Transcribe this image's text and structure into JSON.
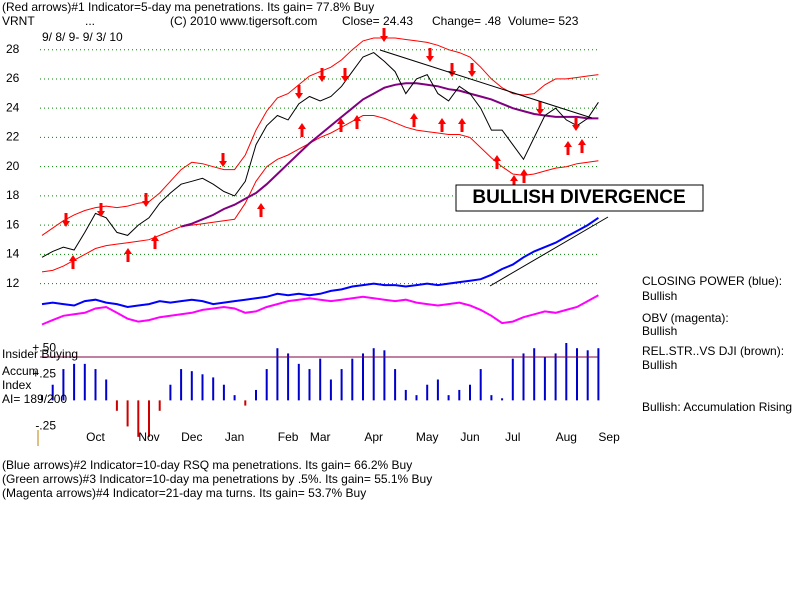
{
  "header": {
    "line1": "(Red arrows)#1 Indicator=5-day ma penetrations. Its gain= 77.8% Buy",
    "ticker": "VRNT",
    "dots": "...",
    "copyright": "(C) 2010 www.tigersoft.com",
    "close": "Close=  24.43",
    "change": "Change= .48",
    "volume": "Volume= 523",
    "dates": "9/ 8/ 9- 9/ 3/ 10"
  },
  "annotation": "BULLISH DIVERGENCE",
  "left_labels": [
    "Insider Buying",
    "Accum",
    "Index",
    "AI= 189/200"
  ],
  "right_labels": [
    "CLOSING POWER (blue):",
    "Bullish",
    "OBV (magenta):",
    "Bullish",
    "REL.STR..VS DJI (brown):",
    "Bullish",
    "Bullish: Accumulation Rising"
  ],
  "footer": [
    "(Blue arrows)#2 Indicator=10-day RSQ ma penetrations. Its gain= 66.2% Buy",
    "(Green arrows)#3 Indicator=10-day ma penetrations by .5%. Its gain= 55.1% Buy",
    "(Magenta arrows)#4 Indicator=21-day ma turns. Its gain= 53.7% Buy"
  ],
  "chart_data": [
    {
      "type": "line",
      "categories": [
        null,
        null,
        null,
        null,
        null,
        "Oct",
        null,
        null,
        null,
        null,
        "Nov",
        null,
        null,
        null,
        "Dec",
        null,
        null,
        null,
        "Jan",
        null,
        null,
        null,
        null,
        "Feb",
        null,
        null,
        "Mar",
        null,
        null,
        null,
        null,
        "Apr",
        null,
        null,
        null,
        null,
        "May",
        null,
        null,
        null,
        "Jun",
        null,
        null,
        null,
        "Jul",
        null,
        null,
        null,
        null,
        "Aug",
        null,
        null,
        null,
        "Sep"
      ],
      "ylim": [
        7.8,
        31.4
      ],
      "yticks": [
        12,
        14,
        16,
        18,
        20,
        22,
        24,
        26,
        28
      ],
      "grid": true,
      "series": [
        {
          "color": "#ff0000",
          "values": [
            15.3,
            15.8,
            16.3,
            16.7,
            17.0,
            17.2,
            17.3,
            17.2,
            17.3,
            17.5,
            17.6,
            18.2,
            19.0,
            19.8,
            20.3,
            20.2,
            20.0,
            19.8,
            19.8,
            20.8,
            22.5,
            23.8,
            24.7,
            25.0,
            25.6,
            26.2,
            26.5,
            26.8,
            27.3,
            28.0,
            28.6,
            28.8,
            28.8,
            28.8,
            28.7,
            28.6,
            28.5,
            28.3,
            28.0,
            27.8,
            27.5,
            26.8,
            26.0,
            25.4,
            25.0,
            24.9,
            25.0,
            25.6,
            26.0,
            26.0,
            26.1,
            26.2,
            26.3,
            null
          ]
        },
        {
          "color": "#ff0000",
          "values": [
            12.8,
            12.9,
            13.2,
            13.6,
            14.0,
            14.4,
            14.6,
            14.7,
            14.8,
            14.9,
            15.0,
            15.3,
            15.6,
            15.9,
            16.0,
            16.1,
            16.2,
            16.3,
            16.4,
            17.5,
            19.0,
            20.0,
            20.5,
            20.8,
            21.2,
            21.6,
            22.0,
            22.3,
            22.7,
            23.1,
            23.5,
            23.5,
            23.3,
            23.0,
            22.7,
            22.5,
            22.4,
            22.3,
            22.2,
            22.2,
            22.0,
            21.3,
            20.6,
            20.0,
            19.5,
            19.4,
            19.5,
            19.7,
            19.9,
            20.0,
            20.2,
            20.3,
            20.4,
            null
          ]
        },
        {
          "color": "#800080",
          "values": [
            null,
            null,
            null,
            null,
            null,
            null,
            null,
            null,
            null,
            null,
            null,
            null,
            null,
            15.9,
            16.1,
            16.4,
            16.7,
            17.1,
            17.4,
            17.8,
            18.2,
            18.8,
            19.5,
            20.2,
            20.9,
            21.6,
            22.2,
            22.8,
            23.4,
            24.0,
            24.6,
            25.0,
            25.4,
            25.6,
            25.7,
            25.7,
            25.6,
            25.5,
            25.3,
            25.2,
            25.0,
            24.8,
            24.6,
            24.3,
            24.0,
            23.8,
            23.6,
            23.5,
            23.4,
            23.4,
            23.4,
            23.3,
            23.3,
            null
          ]
        },
        {
          "color": "#000000",
          "values": [
            13.8,
            14.2,
            14.5,
            14.3,
            15.5,
            16.8,
            16.5,
            15.5,
            15.3,
            16.0,
            16.5,
            17.5,
            18.2,
            18.8,
            19.0,
            19.2,
            18.8,
            18.3,
            18.0,
            19.0,
            21.5,
            22.8,
            23.5,
            23.2,
            24.3,
            24.8,
            24.5,
            24.8,
            25.5,
            26.5,
            27.5,
            27.8,
            27.2,
            26.5,
            25.0,
            26.0,
            26.3,
            25.0,
            24.5,
            25.5,
            25.0,
            24.0,
            22.5,
            22.5,
            21.5,
            20.5,
            22.0,
            23.5,
            24.0,
            23.2,
            22.8,
            23.3,
            24.4,
            null
          ]
        },
        {
          "color": "#0000ff",
          "values": [
            10.6,
            10.7,
            10.6,
            10.5,
            10.8,
            10.9,
            10.7,
            10.6,
            10.4,
            10.5,
            10.6,
            10.8,
            10.7,
            10.8,
            10.9,
            10.8,
            10.6,
            10.7,
            10.8,
            10.9,
            11.0,
            11.1,
            11.3,
            11.2,
            11.3,
            11.2,
            11.3,
            11.5,
            11.6,
            11.8,
            11.9,
            12.0,
            11.9,
            11.9,
            11.8,
            11.9,
            12.0,
            11.9,
            12.0,
            12.1,
            12.2,
            12.3,
            12.6,
            13.0,
            13.3,
            13.8,
            14.2,
            14.5,
            14.8,
            15.2,
            15.6,
            16.0,
            16.5,
            null
          ]
        },
        {
          "color": "#ff00ff",
          "values": [
            9.2,
            9.5,
            9.8,
            9.9,
            10.0,
            10.3,
            10.4,
            10.0,
            9.6,
            9.4,
            9.5,
            9.7,
            9.8,
            9.9,
            10.0,
            10.2,
            10.3,
            10.4,
            10.3,
            10.0,
            10.1,
            10.4,
            10.6,
            10.8,
            10.9,
            11.0,
            10.9,
            10.8,
            10.9,
            11.0,
            11.1,
            11.0,
            10.9,
            10.8,
            10.9,
            10.7,
            10.6,
            10.5,
            10.6,
            10.7,
            10.5,
            10.2,
            9.8,
            9.3,
            9.4,
            9.7,
            9.9,
            10.1,
            10.0,
            10.2,
            10.4,
            10.8,
            11.2,
            null
          ]
        }
      ]
    },
    {
      "type": "bar",
      "ylim": [
        -0.38,
        0.55
      ],
      "yticks": [
        {
          "value": 0.5,
          "label": "+.50"
        },
        {
          "value": 0.25,
          "label": "+.25"
        },
        {
          "value": -0.25,
          "label": "-.25"
        }
      ],
      "color": "#0000cc",
      "negative_color": "#cc0000",
      "values": [
        0.05,
        0.15,
        0.3,
        0.35,
        0.35,
        0.3,
        0.2,
        -0.1,
        -0.25,
        -0.35,
        -0.35,
        -0.1,
        0.15,
        0.3,
        0.28,
        0.25,
        0.22,
        0.15,
        0.05,
        -0.05,
        0.1,
        0.3,
        0.5,
        0.45,
        0.35,
        0.3,
        0.4,
        0.2,
        0.3,
        0.4,
        0.45,
        0.5,
        0.48,
        0.3,
        0.1,
        0.05,
        0.15,
        0.2,
        0.05,
        0.1,
        0.15,
        0.3,
        0.05,
        0.02,
        0.4,
        0.45,
        0.5,
        0.42,
        0.45,
        0.55,
        0.5,
        0.48,
        0.5,
        null
      ]
    }
  ]
}
